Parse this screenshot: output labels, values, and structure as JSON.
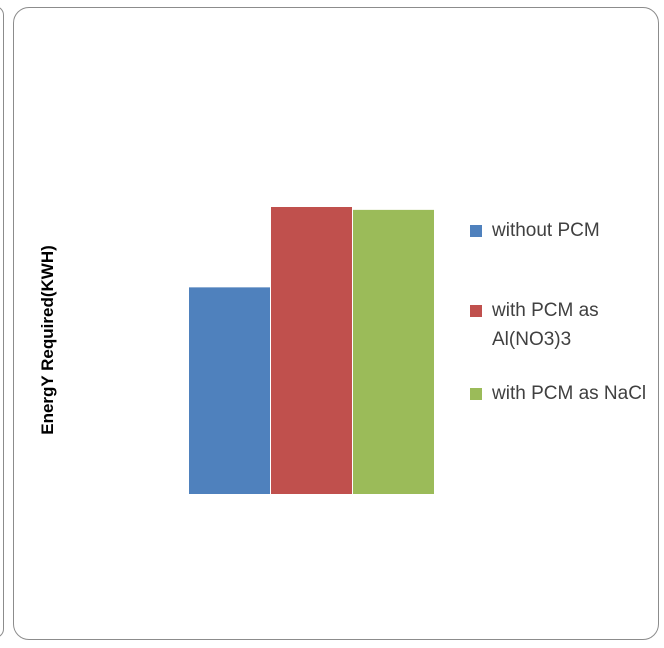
{
  "chart_data": {
    "type": "bar",
    "title": "",
    "xlabel": "",
    "ylabel": "EnergY Required(KWH)",
    "categories": [
      ""
    ],
    "series": [
      {
        "name": "without PCM",
        "values": [
          72
        ],
        "color": "#4f81bd"
      },
      {
        "name": "with PCM as Al(NO3)3",
        "values": [
          100
        ],
        "color": "#c0504d"
      },
      {
        "name": "with PCM as NaCl",
        "values": [
          99
        ],
        "color": "#9bbb59"
      }
    ],
    "ylim": [
      0,
      100
    ],
    "grid": false,
    "legend": "right"
  }
}
